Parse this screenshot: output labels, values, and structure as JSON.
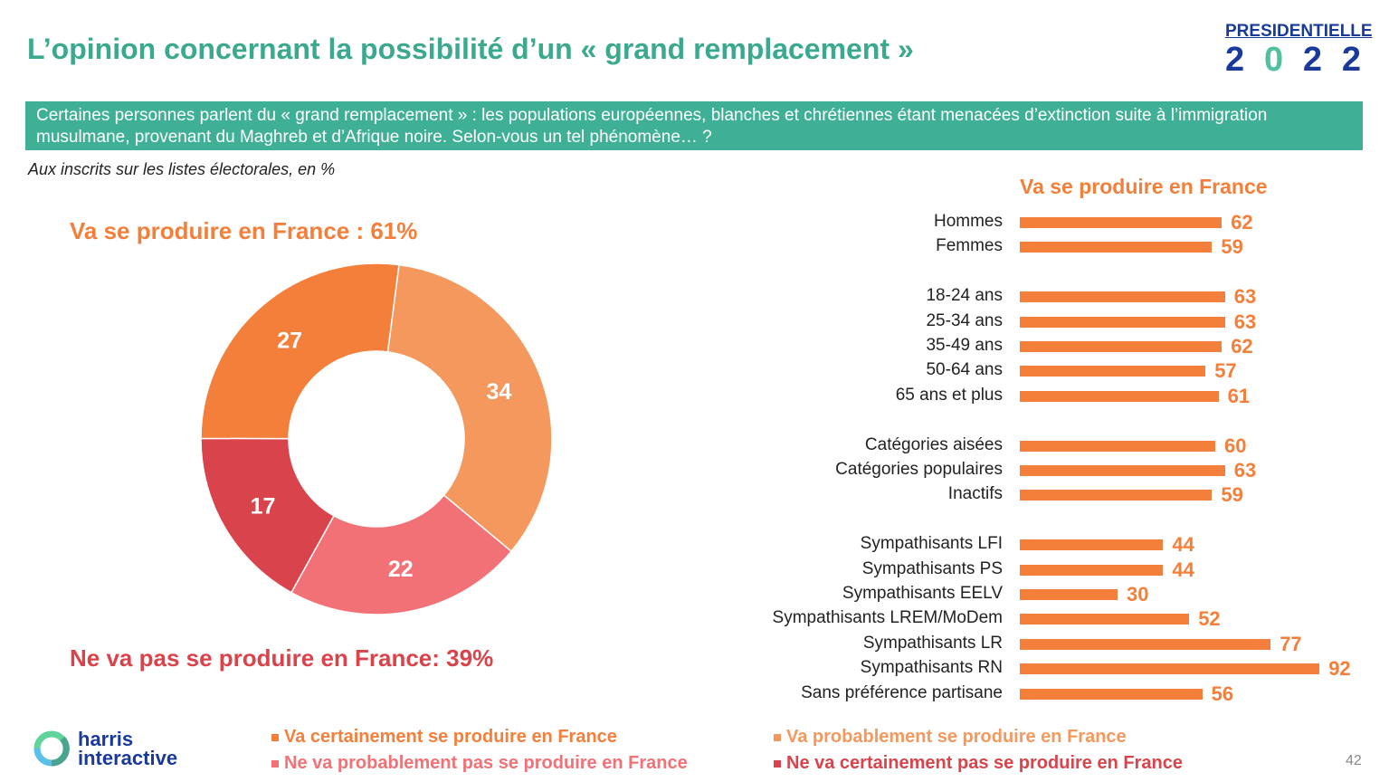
{
  "title": "L’opinion concernant la possibilité d’un « grand remplacement »",
  "logo": {
    "top": "PRESIDENTIELLE",
    "year": [
      "2",
      "0",
      "2",
      "2"
    ]
  },
  "question": "Certaines personnes parlent du « grand remplacement » : les populations européennes, blanches et chrétiennes étant menacées d’extinction suite à l’immigration musulmane, provenant du Maghreb et d’Afrique noire. Selon-vous un tel phénomène… ?",
  "basis": "Aux inscrits sur les listes électorales, en %",
  "summary_yes": "Va se produire en France : 61%",
  "summary_no": "Ne va pas se produire en France: 39%",
  "colors": {
    "certainement_oui": "#f47f3b",
    "probablement_oui": "#f5985e",
    "probablement_non": "#f27176",
    "certainement_non": "#d9434b",
    "title": "#3aa98e"
  },
  "chart_data": [
    {
      "type": "pie",
      "donut": true,
      "slices": [
        {
          "name": "Va probablement se produire en France",
          "value": 34,
          "color": "#f5985e"
        },
        {
          "name": "Ne va probablement pas se produire en France",
          "value": 22,
          "color": "#f27176"
        },
        {
          "name": "Ne va certainement pas se produire en France",
          "value": 17,
          "color": "#d9434b"
        },
        {
          "name": "Va certainement se produire en France",
          "value": 27,
          "color": "#f47f3b"
        }
      ]
    },
    {
      "type": "bar",
      "orientation": "horizontal",
      "title": "Va se produire en France",
      "xlim": [
        0,
        100
      ],
      "groups": [
        [
          {
            "label": "Hommes",
            "value": 62
          },
          {
            "label": "Femmes",
            "value": 59
          }
        ],
        [
          {
            "label": "18-24 ans",
            "value": 63
          },
          {
            "label": "25-34 ans",
            "value": 63
          },
          {
            "label": "35-49 ans",
            "value": 62
          },
          {
            "label": "50-64 ans",
            "value": 57
          },
          {
            "label": "65 ans et plus",
            "value": 61
          }
        ],
        [
          {
            "label": "Catégories aisées",
            "value": 60
          },
          {
            "label": "Catégories populaires",
            "value": 63
          },
          {
            "label": "Inactifs",
            "value": 59
          }
        ],
        [
          {
            "label": "Sympathisants LFI",
            "value": 44
          },
          {
            "label": "Sympathisants PS",
            "value": 44
          },
          {
            "label": "Sympathisants EELV",
            "value": 30
          },
          {
            "label": "Sympathisants LREM/MoDem",
            "value": 52
          },
          {
            "label": "Sympathisants LR",
            "value": 77
          },
          {
            "label": "Sympathisants RN",
            "value": 92
          },
          {
            "label": "Sans préférence partisane",
            "value": 56
          }
        ]
      ]
    }
  ],
  "legend": [
    {
      "label": "Va certainement se produire en France",
      "color": "#f47f3b"
    },
    {
      "label": "Va probablement se produire en France",
      "color": "#f5985e"
    },
    {
      "label": "Ne va probablement pas se produire en France",
      "color": "#f27176"
    },
    {
      "label": "Ne va certainement pas se produire en France",
      "color": "#d9434b"
    }
  ],
  "brand": {
    "line1": "harris",
    "line2": "interactive"
  },
  "page_number": "42"
}
